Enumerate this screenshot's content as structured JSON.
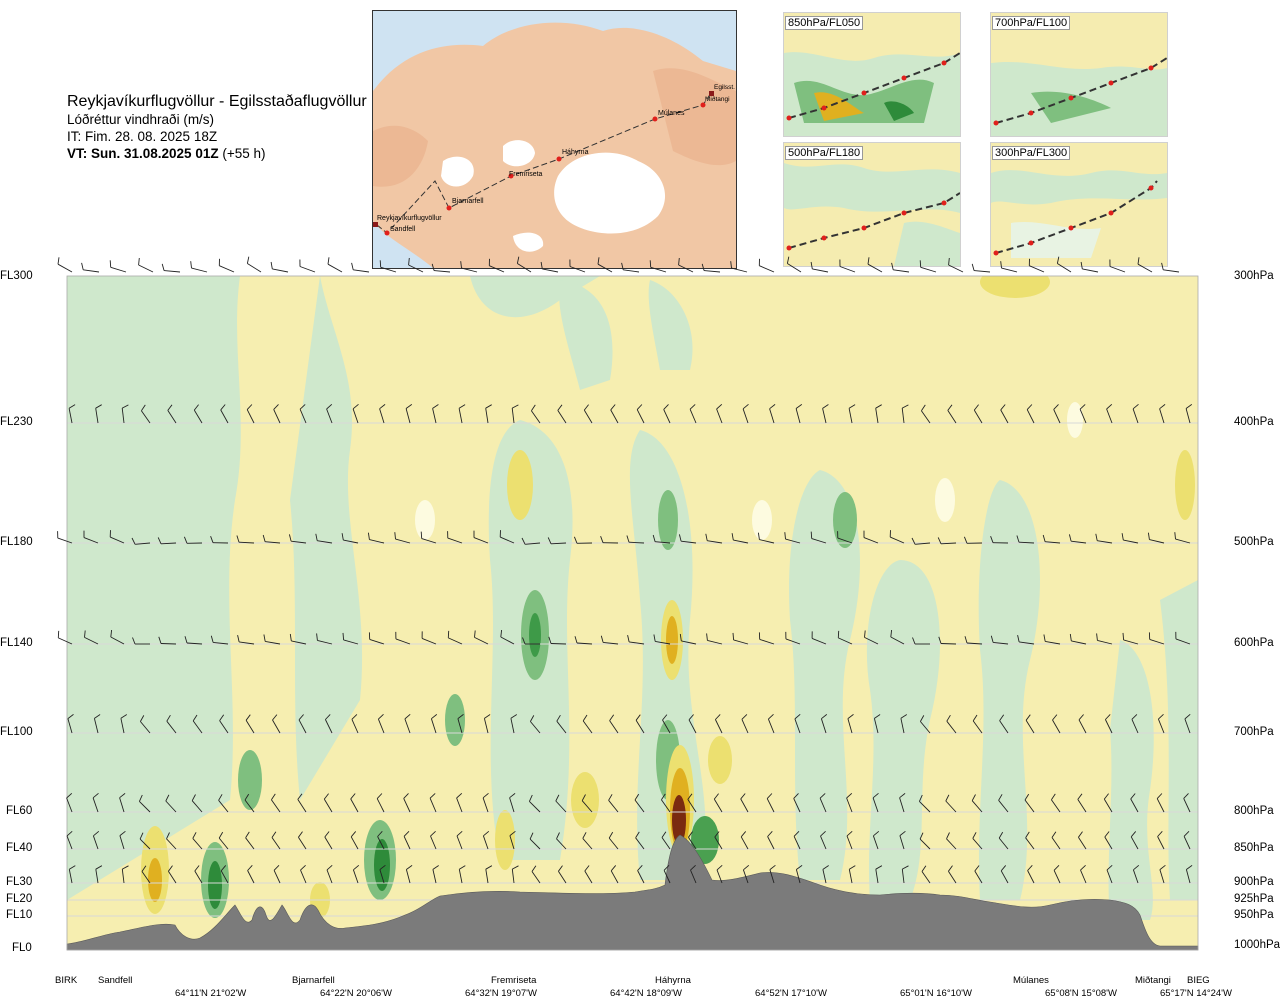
{
  "header": {
    "title": "Reykjavíkurflugvöllur - Egilsstaðaflugvöllur",
    "quantity": "Lóðréttur vindhraði (m/s)",
    "issue": "IT: Fim. 28. 08. 2025 18Z",
    "valid": "VT: Sun. 31.08.2025 01Z",
    "lead": "(+55 h)"
  },
  "map": {
    "route_points": [
      "Reykjavíkurflugvöllur",
      "Sandfell",
      "Bjarnarfell",
      "Fremriseta",
      "Háhyrna",
      "Múlanes",
      "Miðtangi",
      "Egilsst."
    ],
    "colors": {
      "sea": "#cfe3f2",
      "land": "#f1c7a5",
      "ice": "#ffffff",
      "route": "#333333",
      "marker": "#e0201c"
    }
  },
  "minimaps": [
    {
      "label": "850hPa/FL050"
    },
    {
      "label": "700hPa/FL100"
    },
    {
      "label": "500hPa/FL180"
    },
    {
      "label": "300hPa/FL300"
    }
  ],
  "chart_data": {
    "type": "heatmap",
    "title": "Lóðréttur vindhraði (m/s)",
    "left_axis_labels": [
      "FL300",
      "FL230",
      "FL180",
      "FL140",
      "FL100",
      "FL60",
      "FL40",
      "FL30",
      "FL20",
      "FL10",
      "FL0"
    ],
    "right_axis_labels": [
      "300hPa",
      "400hPa",
      "500hPa",
      "600hPa",
      "700hPa",
      "800hPa",
      "850hPa",
      "900hPa",
      "925hPa",
      "950hPa",
      "1000hPa"
    ],
    "pressure_levels_hPa": [
      300,
      400,
      500,
      600,
      700,
      800,
      850,
      900,
      925,
      950,
      1000
    ],
    "locations": [
      "BIRK",
      "Sandfell",
      "Bjarnarfell",
      "Fremriseta",
      "Háhyrna",
      "Múlanes",
      "Miðtangi",
      "BIEG"
    ],
    "coordinates": [
      "64°11'N 21°02'W",
      "64°22'N 20°06'W",
      "64°32'N 19°07'W",
      "64°42'N 18°09'W",
      "64°52'N 17°10'W",
      "65°01'N 16°10'W",
      "65°08'N 15°08'W",
      "65°17'N 14°24'W"
    ],
    "terrain_color": "#7b7b7b",
    "colors": {
      "strong_up": "#2e8b3a",
      "up": "#7fbf7f",
      "weak_up": "#cfe8cc",
      "near_zero_up": "#e8f3e3",
      "near_zero": "#fdfbe0",
      "weak_down": "#f6eeb0",
      "down": "#ece070",
      "strong_down": "#e0b020",
      "very_strong_down": "#7a2a10"
    }
  }
}
